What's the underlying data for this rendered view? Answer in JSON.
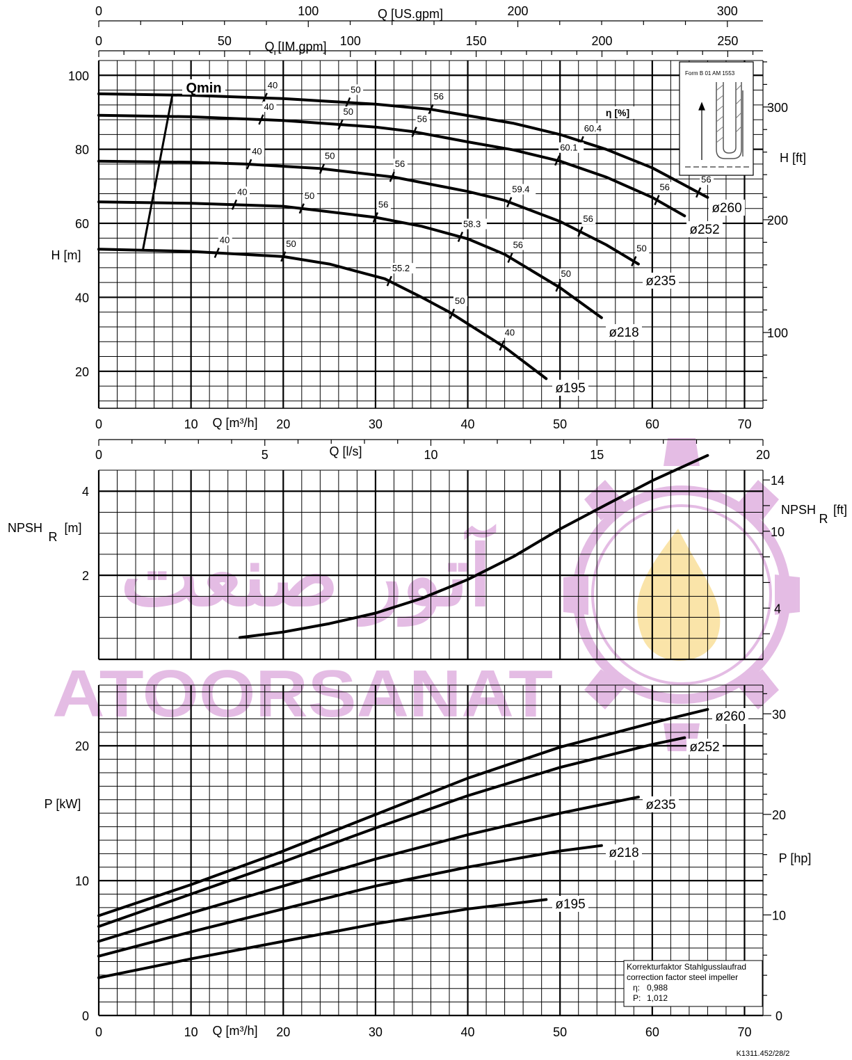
{
  "doc_ref": "K1311.452/28/2",
  "watermark": {
    "latin": "ATOORSANAT",
    "persian": "آتور صنعت",
    "color": "#c46cc4"
  },
  "inset": {
    "title": "Form B 01 AM 1553"
  },
  "correction_box": {
    "line1": "Korrekturfaktor Stahlgusslaufrad",
    "line2": "correction factor steel impeller",
    "eta_label": "η:",
    "eta_value": "0,988",
    "p_label": "P:",
    "p_value": "1,012"
  },
  "chart_data": [
    {
      "type": "line",
      "title": "",
      "axes": {
        "x_bottom": {
          "label": "Q [m³/h]",
          "range": [
            0,
            72
          ],
          "ticks": [
            "0",
            "10",
            "20",
            "30",
            "40",
            "50",
            "60",
            "70"
          ]
        },
        "x_top_im": {
          "label": "Q [IM.gpm]",
          "range": [
            0,
            264
          ],
          "ticks": [
            "0",
            "50",
            "100",
            "150",
            "200",
            "250"
          ]
        },
        "x_top_us": {
          "label": "Q [US.gpm]",
          "range": [
            0,
            317
          ],
          "ticks": [
            "0",
            "100",
            "200",
            "300"
          ]
        },
        "y_left": {
          "label": "H [m]",
          "range": [
            10,
            104
          ],
          "ticks": [
            "20",
            "40",
            "60",
            "80",
            "100"
          ]
        },
        "y_right": {
          "label": "H [ft]",
          "ticks": [
            "100",
            "200",
            "300"
          ]
        },
        "grid": true
      },
      "qmin_label": "Qmin",
      "eta_label": "η [%]",
      "series": [
        {
          "name": "ø260",
          "x": [
            0,
            10,
            20,
            30,
            36,
            45,
            50,
            55,
            60,
            63,
            66
          ],
          "y": [
            95,
            94.6,
            93.7,
            92.2,
            90.8,
            87,
            84,
            80,
            75,
            71,
            67
          ]
        },
        {
          "name": "ø252",
          "x": [
            0,
            10,
            20,
            30,
            34,
            40,
            45,
            50,
            55,
            60,
            63.5
          ],
          "y": [
            89.2,
            88.8,
            87.8,
            86,
            84.8,
            82,
            79.8,
            76.8,
            72.5,
            67,
            62
          ]
        },
        {
          "name": "ø235",
          "x": [
            0,
            10,
            16,
            24,
            32,
            40,
            44,
            50,
            55,
            58.5
          ],
          "y": [
            76.8,
            76.5,
            76,
            74.8,
            72.5,
            68.6,
            66.2,
            60.5,
            54.2,
            49
          ]
        },
        {
          "name": "ø218",
          "x": [
            0,
            10,
            20,
            30,
            35,
            40,
            44,
            50,
            54.5
          ],
          "y": [
            65.8,
            65.4,
            64.6,
            61.6,
            59.2,
            55.8,
            51.6,
            42.6,
            34.5
          ]
        },
        {
          "name": "ø195",
          "x": [
            0,
            10,
            20,
            25,
            31,
            35,
            38,
            44,
            48.5
          ],
          "y": [
            53,
            52.4,
            51,
            49,
            45,
            40,
            36,
            26.5,
            18
          ]
        }
      ],
      "eta_marks": [
        {
          "series": "ø260",
          "x": 18,
          "label": "40"
        },
        {
          "series": "ø260",
          "x": 27,
          "label": "50"
        },
        {
          "series": "ø260",
          "x": 36,
          "label": "56"
        },
        {
          "series": "ø260",
          "x": 52.3,
          "label": "60.4"
        },
        {
          "series": "ø260",
          "x": 65,
          "label": "56"
        },
        {
          "series": "ø252",
          "x": 17.6,
          "label": "40"
        },
        {
          "series": "ø252",
          "x": 26.2,
          "label": "50"
        },
        {
          "series": "ø252",
          "x": 34.2,
          "label": "56"
        },
        {
          "series": "ø252",
          "x": 49.7,
          "label": "60.1"
        },
        {
          "series": "ø252",
          "x": 60.5,
          "label": "56"
        },
        {
          "series": "ø235",
          "x": 16.3,
          "label": "40"
        },
        {
          "series": "ø235",
          "x": 24.2,
          "label": "50"
        },
        {
          "series": "ø235",
          "x": 31.8,
          "label": "56"
        },
        {
          "series": "ø235",
          "x": 44.5,
          "label": "59.4"
        },
        {
          "series": "ø235",
          "x": 52.2,
          "label": "56"
        },
        {
          "series": "ø235",
          "x": 58,
          "label": "50"
        },
        {
          "series": "ø218",
          "x": 14.7,
          "label": "40"
        },
        {
          "series": "ø218",
          "x": 22,
          "label": "50"
        },
        {
          "series": "ø218",
          "x": 30,
          "label": "56"
        },
        {
          "series": "ø218",
          "x": 39.2,
          "label": "58.3"
        },
        {
          "series": "ø218",
          "x": 44.6,
          "label": "56"
        },
        {
          "series": "ø218",
          "x": 49.8,
          "label": "50"
        },
        {
          "series": "ø195",
          "x": 12.8,
          "label": "40"
        },
        {
          "series": "ø195",
          "x": 20,
          "label": "50"
        },
        {
          "series": "ø195",
          "x": 31.5,
          "label": "55.2"
        },
        {
          "series": "ø195",
          "x": 38.3,
          "label": "50"
        },
        {
          "series": "ø195",
          "x": 43.7,
          "label": "40"
        }
      ],
      "qmin_line": {
        "x": [
          8,
          4.8
        ],
        "y": [
          95,
          53
        ]
      }
    },
    {
      "type": "line",
      "title": "",
      "axes": {
        "x_top_ls": {
          "label": "Q [l/s]",
          "range": [
            0,
            20
          ],
          "ticks": [
            "0",
            "5",
            "10",
            "15",
            "20"
          ]
        },
        "y_left": {
          "label": "NPSH",
          "sub": "R",
          "unit": "[m]",
          "range": [
            0,
            4.5
          ],
          "ticks": [
            "2",
            "4"
          ]
        },
        "y_right": {
          "label": "NPSH",
          "sub": "R",
          "unit": "[ft]",
          "ticks": [
            "4",
            "10",
            "14"
          ]
        },
        "grid": true
      },
      "series": [
        {
          "name": "",
          "x": [
            15.3,
            20,
            25,
            30,
            35,
            40,
            45,
            50,
            55,
            60,
            66
          ],
          "y": [
            0.52,
            0.65,
            0.85,
            1.1,
            1.45,
            1.9,
            2.45,
            3.1,
            3.68,
            4.25,
            4.85
          ]
        }
      ]
    },
    {
      "type": "line",
      "title": "",
      "axes": {
        "x_bottom": {
          "label": "Q [m³/h]",
          "range": [
            0,
            72
          ],
          "ticks": [
            "0",
            "10",
            "20",
            "30",
            "40",
            "50",
            "60",
            "70"
          ]
        },
        "y_left": {
          "label": "P [kW]",
          "range": [
            0,
            24.5
          ],
          "ticks": [
            "0",
            "10",
            "20"
          ]
        },
        "y_right": {
          "label": "P [hp]",
          "ticks": [
            "0",
            "10",
            "20",
            "30"
          ]
        },
        "grid": true
      },
      "series": [
        {
          "name": "ø260",
          "x": [
            0,
            10,
            20,
            30,
            40,
            50,
            60,
            66
          ],
          "y": [
            7.4,
            9.7,
            12.2,
            14.9,
            17.6,
            19.9,
            21.7,
            22.7
          ]
        },
        {
          "name": "ø252",
          "x": [
            0,
            10,
            20,
            30,
            40,
            50,
            60,
            63.5
          ],
          "y": [
            6.6,
            9.0,
            11.4,
            13.9,
            16.3,
            18.4,
            20.1,
            20.6
          ]
        },
        {
          "name": "ø235",
          "x": [
            0,
            10,
            20,
            30,
            40,
            50,
            58.5
          ],
          "y": [
            5.5,
            7.6,
            9.6,
            11.6,
            13.4,
            15.0,
            16.2
          ]
        },
        {
          "name": "ø218",
          "x": [
            0,
            10,
            20,
            30,
            40,
            50,
            54.5
          ],
          "y": [
            4.4,
            6.2,
            7.9,
            9.6,
            11.0,
            12.2,
            12.6
          ]
        },
        {
          "name": "ø195",
          "x": [
            0,
            10,
            20,
            30,
            40,
            48.5
          ],
          "y": [
            2.8,
            4.2,
            5.5,
            6.8,
            7.9,
            8.6
          ]
        }
      ]
    }
  ]
}
